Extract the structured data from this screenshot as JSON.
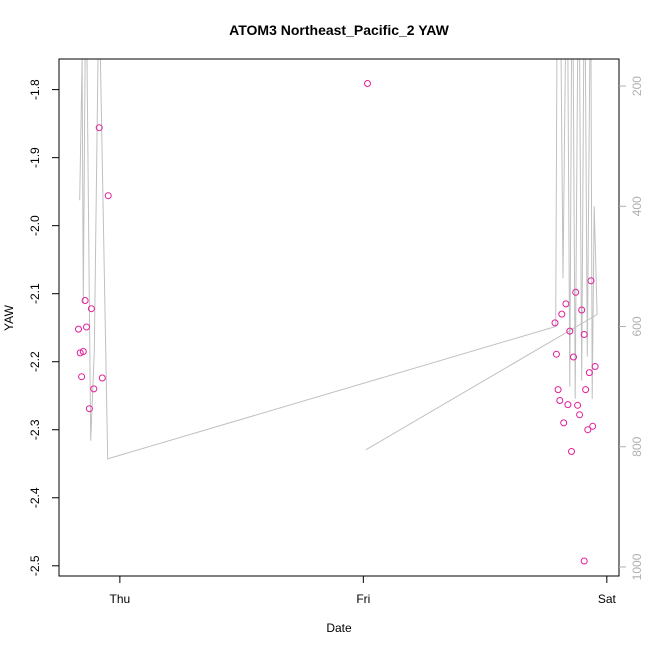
{
  "chart_data": {
    "type": "scatter",
    "title": "ATOM3 Northeast_Pacific_2 YAW",
    "xlabel": "Date",
    "ylabel": "YAW",
    "x_ticks": [
      {
        "t": 0,
        "label": "Thu"
      },
      {
        "t": 1,
        "label": "Fri"
      },
      {
        "t": 2,
        "label": "Sat"
      }
    ],
    "xlim": [
      -0.25,
      2.05
    ],
    "ylim": [
      -2.515,
      -1.755
    ],
    "y_ticks": [
      -2.5,
      -2.4,
      -2.3,
      -2.2,
      -2.1,
      -2.0,
      -1.9,
      -1.8
    ],
    "y_tick_labels": [
      "-2.5",
      "-2.4",
      "-2.3",
      "-2.2",
      "-2.1",
      "-2.0",
      "-1.9",
      "-1.8"
    ],
    "y2lim": [
      1015,
      155
    ],
    "y2_ticks": [
      200,
      400,
      600,
      800,
      1000
    ],
    "y2_tick_labels": [
      "200",
      "400",
      "600",
      "800",
      "1000"
    ],
    "point_color": "#e0209a",
    "line_color": "#c0c0c0",
    "points": [
      {
        "x": -0.17,
        "y": -2.152
      },
      {
        "x": -0.163,
        "y": -2.187
      },
      {
        "x": -0.157,
        "y": -2.222
      },
      {
        "x": -0.15,
        "y": -2.185
      },
      {
        "x": -0.143,
        "y": -2.11
      },
      {
        "x": -0.137,
        "y": -2.149
      },
      {
        "x": -0.125,
        "y": -2.269
      },
      {
        "x": -0.117,
        "y": -2.122
      },
      {
        "x": -0.107,
        "y": -2.24
      },
      {
        "x": -0.085,
        "y": -1.856
      },
      {
        "x": -0.072,
        "y": -2.224
      },
      {
        "x": -0.048,
        "y": -1.956
      },
      {
        "x": 1.017,
        "y": -1.791
      },
      {
        "x": 1.787,
        "y": -2.143
      },
      {
        "x": 1.793,
        "y": -2.189
      },
      {
        "x": 1.8,
        "y": -2.241
      },
      {
        "x": 1.807,
        "y": -2.257
      },
      {
        "x": 1.815,
        "y": -2.13
      },
      {
        "x": 1.823,
        "y": -2.29
      },
      {
        "x": 1.832,
        "y": -2.115
      },
      {
        "x": 1.84,
        "y": -2.263
      },
      {
        "x": 1.848,
        "y": -2.155
      },
      {
        "x": 1.855,
        "y": -2.332
      },
      {
        "x": 1.863,
        "y": -2.193
      },
      {
        "x": 1.872,
        "y": -2.098
      },
      {
        "x": 1.88,
        "y": -2.264
      },
      {
        "x": 1.888,
        "y": -2.278
      },
      {
        "x": 1.897,
        "y": -2.124
      },
      {
        "x": 1.907,
        "y": -2.16
      },
      {
        "x": 1.913,
        "y": -2.241
      },
      {
        "x": 1.922,
        "y": -2.3
      },
      {
        "x": 1.928,
        "y": -2.216
      },
      {
        "x": 1.935,
        "y": -2.081
      },
      {
        "x": 1.942,
        "y": -2.295
      },
      {
        "x": 1.952,
        "y": -2.207
      },
      {
        "x": 1.907,
        "y": -2.493
      }
    ],
    "line_series": {
      "axis": "right",
      "points": [
        {
          "x": -0.165,
          "y": 390
        },
        {
          "x": -0.155,
          "y": 155
        },
        {
          "x": -0.15,
          "y": 560
        },
        {
          "x": -0.143,
          "y": 155
        },
        {
          "x": -0.135,
          "y": 155
        },
        {
          "x": -0.12,
          "y": 790
        },
        {
          "x": -0.105,
          "y": 640
        },
        {
          "x": -0.09,
          "y": 155
        },
        {
          "x": -0.08,
          "y": 155
        },
        {
          "x": -0.05,
          "y": 820
        },
        {
          "x": 1.79,
          "y": 600
        },
        {
          "x": 1.795,
          "y": 155
        },
        {
          "x": 1.8,
          "y": 155
        },
        {
          "x": 1.81,
          "y": 145
        },
        {
          "x": 1.812,
          "y": 155
        },
        {
          "x": 1.82,
          "y": 520
        },
        {
          "x": 1.83,
          "y": 155
        },
        {
          "x": 1.84,
          "y": 155
        },
        {
          "x": 1.848,
          "y": 700
        },
        {
          "x": 1.855,
          "y": 155
        },
        {
          "x": 1.862,
          "y": 155
        },
        {
          "x": 1.87,
          "y": 720
        },
        {
          "x": 1.88,
          "y": 155
        },
        {
          "x": 1.888,
          "y": 155
        },
        {
          "x": 1.897,
          "y": 690
        },
        {
          "x": 1.905,
          "y": 155
        },
        {
          "x": 1.912,
          "y": 155
        },
        {
          "x": 1.92,
          "y": 650
        },
        {
          "x": 1.93,
          "y": 155
        },
        {
          "x": 1.935,
          "y": 155
        },
        {
          "x": 1.94,
          "y": 720
        },
        {
          "x": 1.948,
          "y": 400
        },
        {
          "x": 1.96,
          "y": 580
        },
        {
          "x": 1.01,
          "y": 805
        }
      ]
    }
  }
}
